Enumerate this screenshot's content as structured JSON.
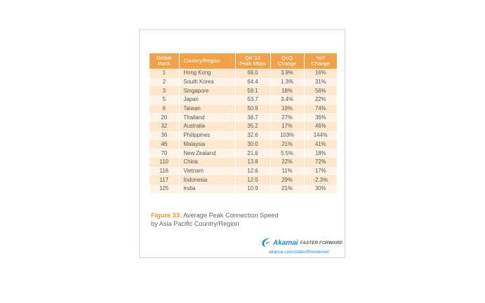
{
  "table": {
    "headers": {
      "rank": [
        "Global",
        "Rank"
      ],
      "country": "Country/Region",
      "peak": [
        "Q4 '13",
        "Peak Mbps"
      ],
      "qoq": [
        "QoQ",
        "Change"
      ],
      "yoy": [
        "YoY",
        "Change"
      ]
    },
    "rows": [
      {
        "rank": "1",
        "country": "Hong Kong",
        "peak": "68.0",
        "qoq": "3.9%",
        "yoy": "16%"
      },
      {
        "rank": "2",
        "country": "South Korea",
        "peak": "64.4",
        "qoq": "1.3%",
        "yoy": "31%"
      },
      {
        "rank": "3",
        "country": "Singapore",
        "peak": "59.1",
        "qoq": "18%",
        "yoy": "56%"
      },
      {
        "rank": "5",
        "country": "Japan",
        "peak": "53.7",
        "qoq": "3.4%",
        "yoy": "22%"
      },
      {
        "rank": "6",
        "country": "Taiwan",
        "peak": "50.9",
        "qoq": "19%",
        "yoy": "74%"
      },
      {
        "rank": "20",
        "country": "Thailand",
        "peak": "38.7",
        "qoq": "27%",
        "yoy": "36%"
      },
      {
        "rank": "32",
        "country": "Australia",
        "peak": "35.2",
        "qoq": "17%",
        "yoy": "46%"
      },
      {
        "rank": "36",
        "country": "Philippines",
        "peak": "32.6",
        "qoq": "103%",
        "yoy": "144%"
      },
      {
        "rank": "46",
        "country": "Malaysia",
        "peak": "30.0",
        "qoq": "21%",
        "yoy": "41%"
      },
      {
        "rank": "70",
        "country": "New Zealand",
        "peak": "21.6",
        "qoq": "5.5%",
        "yoy": "18%"
      },
      {
        "rank": "110",
        "country": "China",
        "peak": "13.8",
        "qoq": "22%",
        "yoy": "72%"
      },
      {
        "rank": "116",
        "country": "Vietnam",
        "peak": "12.6",
        "qoq": "11%",
        "yoy": "17%"
      },
      {
        "rank": "117",
        "country": "Indonesia",
        "peak": "12.5",
        "qoq": "29%",
        "yoy": "-2.3%"
      },
      {
        "rank": "125",
        "country": "India",
        "peak": "10.9",
        "qoq": "21%",
        "yoy": "30%"
      }
    ]
  },
  "caption": {
    "label": "Figure 33:",
    "line1": "Average Peak Connection Speed",
    "line2": "by Asia Pacific Country/Region"
  },
  "branding": {
    "logo_icon": "akamai-swoosh-icon",
    "logo_text": "Akamai",
    "tagline": "FASTER FORWARD",
    "url": "akamai.com/stateoftheinternet"
  },
  "colors": {
    "header_orange": "#f0a24a",
    "row_dark": "#fde7cf",
    "row_light": "#fef3e6",
    "caption_orange": "#f0962a",
    "akamai_blue": "#1b8ed0"
  }
}
